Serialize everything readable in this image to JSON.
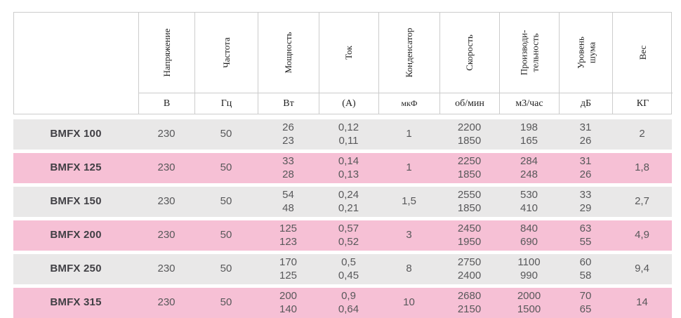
{
  "table": {
    "colors": {
      "row_gray": "#e9e8e8",
      "row_pink": "#f6c0d5",
      "border": "#cccccc",
      "data_text": "#58585a",
      "model_text": "#403f44"
    },
    "columns": [
      {
        "label": "",
        "unit": ""
      },
      {
        "label": "Напряжение",
        "unit": "В"
      },
      {
        "label": "Частота",
        "unit": "Гц"
      },
      {
        "label": "Мощность",
        "unit": "Вт"
      },
      {
        "label": "Ток",
        "unit": "(А)"
      },
      {
        "label": "Конденсатор",
        "unit": "мкФ"
      },
      {
        "label": "Скорость",
        "unit": "об/мин"
      },
      {
        "label": "Производи-\nтельность",
        "unit": "м3/час"
      },
      {
        "label": "Уровень\nшума",
        "unit": "дБ"
      },
      {
        "label": "Вес",
        "unit": "КГ"
      }
    ],
    "rows": [
      {
        "model": "BMFX 100",
        "values": [
          "230",
          "50",
          "26\n23",
          "0,12\n0,11",
          "1",
          "2200\n1850",
          "198\n165",
          "31\n26",
          "2"
        ]
      },
      {
        "model": "BMFX 125",
        "values": [
          "230",
          "50",
          "33\n28",
          "0,14\n0,13",
          "1",
          "2250\n1850",
          "284\n248",
          "31\n26",
          "1,8"
        ]
      },
      {
        "model": "BMFX 150",
        "values": [
          "230",
          "50",
          "54\n48",
          "0,24\n0,21",
          "1,5",
          "2550\n1850",
          "530\n410",
          "33\n29",
          "2,7"
        ]
      },
      {
        "model": "BMFX 200",
        "values": [
          "230",
          "50",
          "125\n123",
          "0,57\n0,52",
          "3",
          "2450\n1950",
          "840\n690",
          "63\n55",
          "4,9"
        ]
      },
      {
        "model": "BMFX 250",
        "values": [
          "230",
          "50",
          "170\n125",
          "0,5\n0,45",
          "8",
          "2750\n2400",
          "1100\n990",
          "60\n58",
          "9,4"
        ]
      },
      {
        "model": "BMFX 315",
        "values": [
          "230",
          "50",
          "200\n140",
          "0,9\n0,64",
          "10",
          "2680\n2150",
          "2000\n1500",
          "70\n65",
          "14"
        ]
      }
    ]
  }
}
